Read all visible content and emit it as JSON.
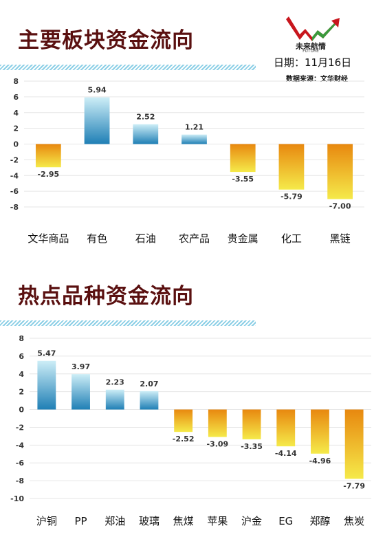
{
  "header": {
    "brand": "未来航情",
    "brand_sub": "FUTURE",
    "date": "日期：11月16日",
    "source": "数据来源：文华财经"
  },
  "colors": {
    "title": "#5a1010",
    "positive_top": "#cdeef7",
    "positive_bottom": "#1f7fb5",
    "negative_top": "#e8880f",
    "negative_bottom": "#f5ea4a"
  },
  "chart_data": [
    {
      "type": "bar",
      "title": "主要板块资金流向",
      "categories": [
        "文华商品",
        "有色",
        "石油",
        "农产品",
        "贵金属",
        "化工",
        "黑链"
      ],
      "values": [
        -2.95,
        5.94,
        2.52,
        1.21,
        -3.55,
        -5.79,
        -7.0
      ],
      "value_labels": [
        "-2.95",
        "5.94",
        "2.52",
        "1.21",
        "-3.55",
        "-5.79",
        "-7.00"
      ],
      "yticks": [
        8,
        6,
        4,
        2,
        0,
        -2,
        -4,
        -6,
        -8
      ],
      "ylim": [
        -8,
        8
      ],
      "grid": true,
      "xlabel": "",
      "ylabel": ""
    },
    {
      "type": "bar",
      "title": "热点品种资金流向",
      "categories": [
        "沪铜",
        "PP",
        "郑油",
        "玻璃",
        "焦煤",
        "苹果",
        "沪金",
        "EG",
        "郑醇",
        "焦炭"
      ],
      "values": [
        5.47,
        3.97,
        2.23,
        2.07,
        -2.52,
        -3.09,
        -3.35,
        -4.14,
        -4.96,
        -7.79
      ],
      "value_labels": [
        "5.47",
        "3.97",
        "2.23",
        "2.07",
        "-2.52",
        "-3.09",
        "-3.35",
        "-4.14",
        "-4.96",
        "-7.79"
      ],
      "yticks": [
        8,
        6,
        4,
        2,
        0,
        -2,
        -4,
        -6,
        -8,
        -10
      ],
      "ylim": [
        -10,
        8
      ],
      "grid": true,
      "xlabel": "",
      "ylabel": ""
    }
  ]
}
